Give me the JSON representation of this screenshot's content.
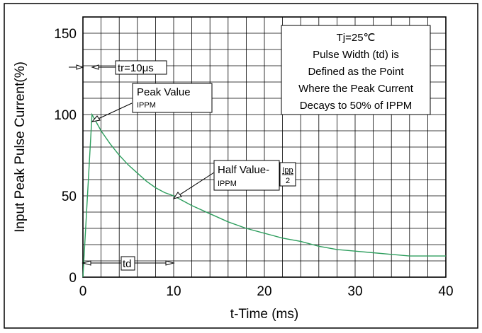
{
  "chart_data": {
    "type": "line",
    "xlabel": "t-Time (ms)",
    "ylabel": "Input Peak Pulse Current(%)",
    "xlim": [
      0,
      40
    ],
    "ylim": [
      0,
      160
    ],
    "x_ticks": [
      0,
      10,
      20,
      30,
      40
    ],
    "y_ticks": [
      0,
      50,
      100,
      150
    ],
    "grid": true,
    "series": [
      {
        "color": "#2e9e5e",
        "x": [
          0,
          1,
          2,
          3,
          4,
          5,
          6,
          7,
          8,
          9,
          10,
          12,
          14,
          16,
          18,
          20,
          22,
          24,
          26,
          28,
          30,
          32,
          34,
          36,
          38,
          40
        ],
        "y": [
          0,
          100,
          90,
          82,
          75,
          69,
          64,
          59,
          55,
          52,
          50,
          44,
          39,
          34,
          30,
          27,
          24,
          22,
          19,
          17,
          16,
          15,
          14,
          13,
          13,
          13
        ]
      }
    ],
    "annotations": {
      "tr_label": "tr=10μs",
      "peak_title": "Peak Value",
      "peak_sub": "IPPM",
      "half_title": "Half Value-",
      "half_sub": "IPPM",
      "frac_num": "Ipp",
      "frac_den": "2",
      "td_label": "td",
      "note_lines": [
        "Tj=25℃",
        "Pulse Width (td) is",
        "Defined as the Point",
        "Where the Peak Current",
        "Decays to 50% of IPPM"
      ]
    }
  }
}
